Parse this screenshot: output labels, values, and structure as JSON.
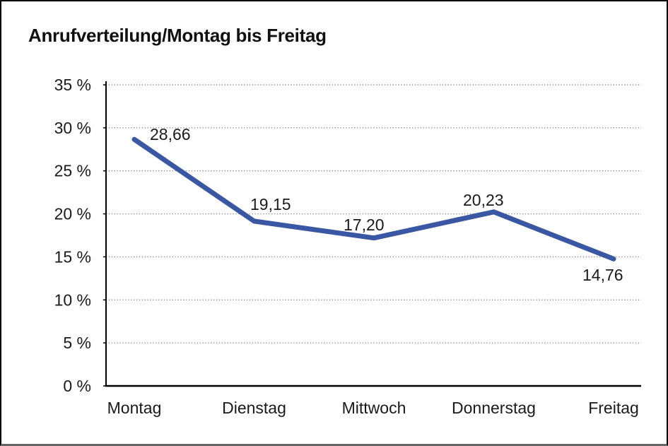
{
  "title": "Anrufverteilung/Montag bis Freitag",
  "chart_data": {
    "type": "line",
    "title": "Anrufverteilung/Montag bis Freitag",
    "categories": [
      "Montag",
      "Dienstag",
      "Mittwoch",
      "Donnerstag",
      "Freitag"
    ],
    "series": [
      {
        "name": "Anrufverteilung",
        "values": [
          28.66,
          19.15,
          17.2,
          20.23,
          14.76
        ],
        "point_labels": [
          "28,66",
          "19,15",
          "17,20",
          "20,23",
          "14,76"
        ]
      }
    ],
    "xlabel": "",
    "ylabel": "",
    "ylim": [
      0,
      35
    ],
    "y_tick_step": 5,
    "y_tick_labels": [
      "35 %",
      "30 %",
      "25 %",
      "20 %",
      "15 %",
      "10 %",
      "5 %",
      "0 %"
    ],
    "grid": "horizontal-dotted",
    "legend": "none",
    "colors": {
      "line": "#3A57A3",
      "gridline": "#8c8c8c",
      "axis": "#000000",
      "text": "#1a1a1a",
      "background": "#ffffff"
    }
  }
}
